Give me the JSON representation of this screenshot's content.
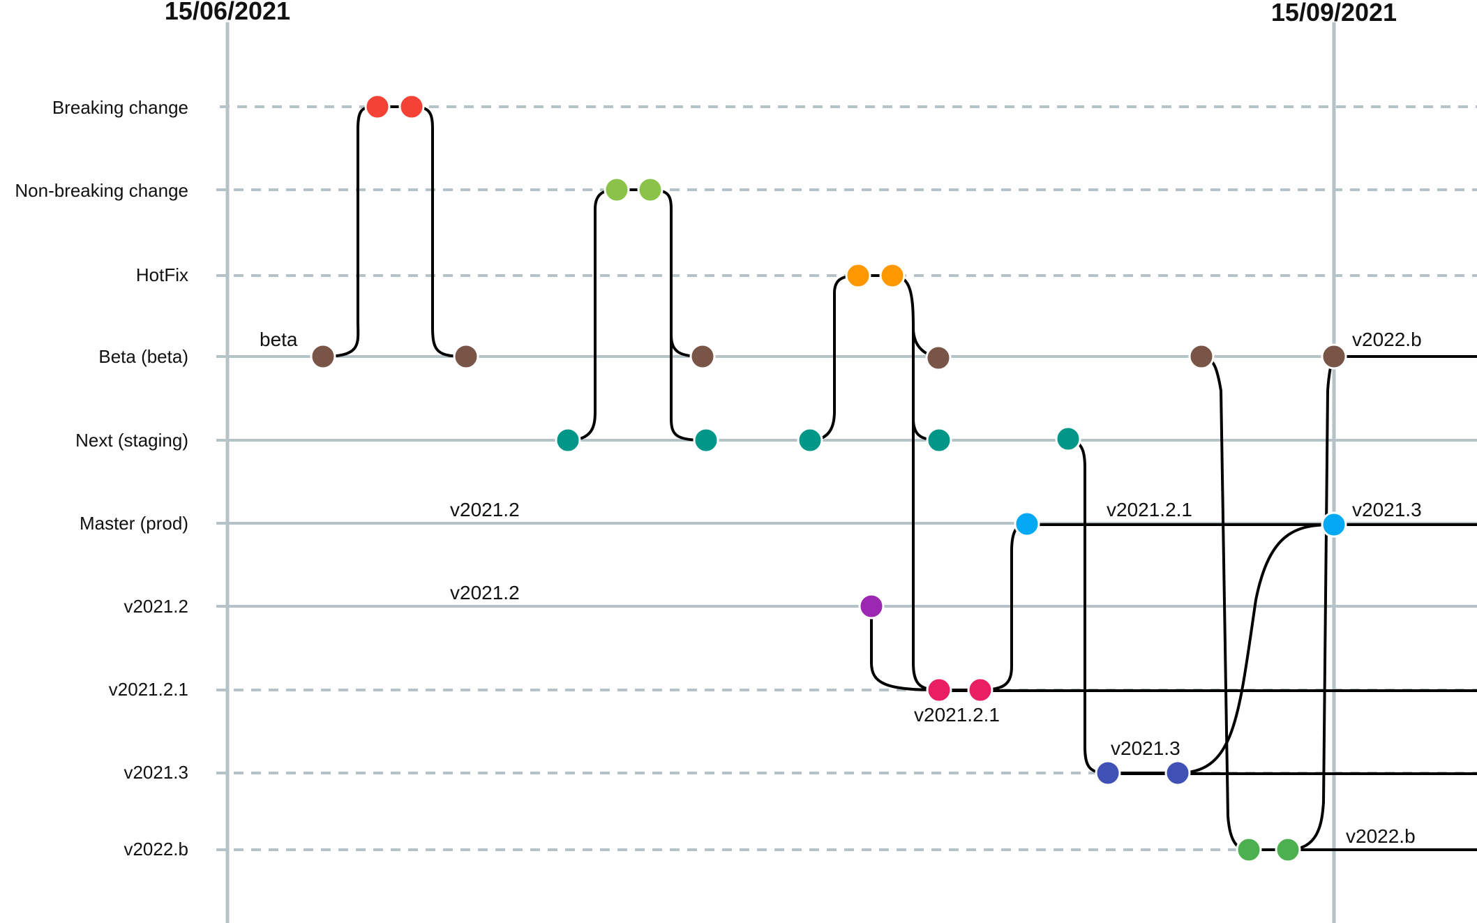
{
  "dates": [
    {
      "label": "15/06/2021",
      "color": "#b5c2c8"
    },
    {
      "label": "15/09/2021",
      "color": "#b5c2c8"
    }
  ],
  "lanes": [
    {
      "id": "breaking",
      "label": "Breaking change",
      "style": "dashed"
    },
    {
      "id": "nonbreaking",
      "label": "Non-breaking change",
      "style": "dashed"
    },
    {
      "id": "hotfix",
      "label": "HotFix",
      "style": "dashed"
    },
    {
      "id": "beta",
      "label": "Beta (beta)",
      "style": "solid"
    },
    {
      "id": "next",
      "label": "Next (staging)",
      "style": "solid"
    },
    {
      "id": "master",
      "label": "Master (prod)",
      "style": "solid"
    },
    {
      "id": "v2021_2",
      "label": "v2021.2",
      "style": "solid"
    },
    {
      "id": "v2021_2_1",
      "label": "v2021.2.1",
      "style": "dashed"
    },
    {
      "id": "v2021_3",
      "label": "v2021.3",
      "style": "dashed"
    },
    {
      "id": "v2022_b",
      "label": "v2022.b",
      "style": "dashed"
    }
  ],
  "commit_colors": {
    "breaking": "#f44336",
    "nonbreaking": "#8bc34a",
    "hotfix": "#ff9800",
    "beta": "#795548",
    "next": "#009688",
    "master": "#03a9f4",
    "v2021_2": "#9c27b0",
    "v2021_2_1": "#e91e63",
    "v2021_3": "#3f51b5",
    "v2022_b": "#4caf50"
  },
  "tags": [
    {
      "text": "beta"
    },
    {
      "text": "v2022.b"
    },
    {
      "text": "v2021.2"
    },
    {
      "text": "v2021.2.1"
    },
    {
      "text": "v2021.3"
    },
    {
      "text": "v2021.2"
    },
    {
      "text": "v2021.2.1"
    },
    {
      "text": "v2021.3"
    },
    {
      "text": "v2022.b"
    }
  ]
}
